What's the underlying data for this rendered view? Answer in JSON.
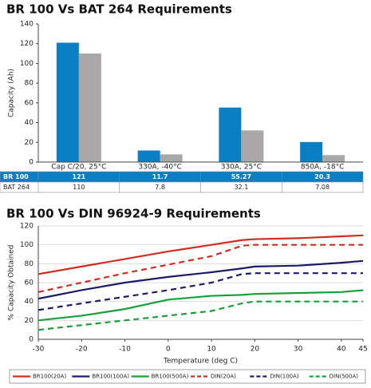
{
  "chart_data": [
    {
      "type": "bar",
      "title": "BR 100 Vs BAT 264 Requirements",
      "y_label": "Capacity (Ah)",
      "categories": [
        "Cap C/20, 25°C",
        "330A, -40°C",
        "330A, 25°C",
        "850A, -18°C"
      ],
      "series": [
        {
          "name": "BR 100",
          "color": "#0a7fc6",
          "values": [
            121,
            11.7,
            55.27,
            20.3
          ]
        },
        {
          "name": "BAT 264",
          "color": "#a9a7a7",
          "values": [
            110,
            7.8,
            32.1,
            7.08
          ]
        }
      ],
      "ylim": [
        0,
        140
      ],
      "yticks": [
        0,
        20,
        40,
        60,
        80,
        100,
        120,
        140
      ],
      "grid": false
    },
    {
      "type": "line",
      "title": "BR 100 Vs DIN 96924-9 Requirements",
      "x_label": "Temperature (deg C)",
      "y_label": "% Capacity Obtained",
      "x": [
        -30,
        -20,
        -10,
        0,
        10,
        17,
        20,
        30,
        40,
        45
      ],
      "series": [
        {
          "name": "BR100(20A)",
          "color": "#d42a20",
          "dash": false,
          "values": [
            69,
            77,
            85,
            93,
            100,
            105,
            106,
            107,
            109,
            110
          ]
        },
        {
          "name": "BR100(100A)",
          "color": "#1f1a66",
          "dash": false,
          "values": [
            43,
            52,
            60,
            66,
            71,
            75,
            77,
            78,
            81,
            83
          ]
        },
        {
          "name": "BR100(500A)",
          "color": "#17a03a",
          "dash": false,
          "values": [
            20,
            25,
            32,
            42,
            46,
            47,
            48,
            49,
            50,
            52
          ]
        },
        {
          "name": "DIN(20A)",
          "color": "#d42a20",
          "dash": true,
          "values": [
            50,
            60,
            70,
            79,
            88,
            99,
            100,
            100,
            100,
            100
          ]
        },
        {
          "name": "DIN(100A)",
          "color": "#1f1a66",
          "dash": true,
          "values": [
            31,
            38,
            45,
            52,
            60,
            69,
            70,
            70,
            70,
            70
          ]
        },
        {
          "name": "DIN(500A)",
          "color": "#17a03a",
          "dash": true,
          "values": [
            10,
            15,
            20,
            25,
            30,
            38,
            40,
            40,
            40,
            40
          ]
        }
      ],
      "xlim": [
        -30,
        45
      ],
      "xticks": [
        -30,
        -20,
        -10,
        0,
        10,
        20,
        30,
        40,
        45
      ],
      "ylim": [
        0,
        120
      ],
      "yticks": [
        0,
        20,
        40,
        60,
        80,
        100,
        120
      ],
      "grid": true
    }
  ]
}
